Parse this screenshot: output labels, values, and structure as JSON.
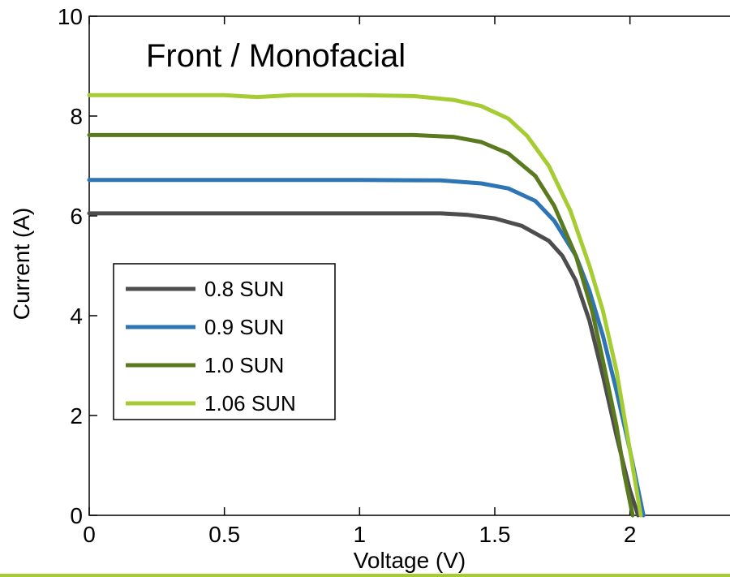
{
  "chart_data": {
    "type": "line",
    "title": "Front / Monofacial",
    "xlabel": "Voltage (V)",
    "ylabel": "Current (A)",
    "xlim": [
      0,
      2.4
    ],
    "ylim": [
      0,
      10
    ],
    "xticks": [
      0,
      0.5,
      1,
      1.5,
      2
    ],
    "xtick_labels": [
      "0",
      "0.5",
      "1",
      "1.5",
      "2"
    ],
    "yticks": [
      0,
      2,
      4,
      6,
      8,
      10
    ],
    "ytick_labels": [
      "0",
      "2",
      "4",
      "6",
      "8",
      "10"
    ],
    "grid": false,
    "legend_position": "middle-left",
    "series": [
      {
        "name": "0.8 SUN",
        "color": "#4d4d4d",
        "x": [
          0,
          0.5,
          1.0,
          1.3,
          1.4,
          1.5,
          1.6,
          1.7,
          1.75,
          1.8,
          1.85,
          1.9,
          1.95,
          2.0,
          2.03
        ],
        "y": [
          6.05,
          6.05,
          6.05,
          6.05,
          6.02,
          5.95,
          5.8,
          5.5,
          5.2,
          4.7,
          3.9,
          2.8,
          1.6,
          0.5,
          0
        ]
      },
      {
        "name": "0.9 SUN",
        "color": "#2e75b6",
        "x": [
          0,
          0.5,
          1.0,
          1.3,
          1.45,
          1.55,
          1.65,
          1.72,
          1.8,
          1.85,
          1.9,
          1.95,
          2.0,
          2.05
        ],
        "y": [
          6.72,
          6.72,
          6.72,
          6.71,
          6.65,
          6.55,
          6.3,
          5.9,
          5.2,
          4.5,
          3.6,
          2.5,
          1.3,
          0
        ]
      },
      {
        "name": "1.0 SUN",
        "color": "#5b7a1f",
        "x": [
          0,
          0.5,
          1.0,
          1.2,
          1.35,
          1.45,
          1.55,
          1.65,
          1.72,
          1.8,
          1.86,
          1.9,
          1.95,
          1.98,
          2.01
        ],
        "y": [
          7.62,
          7.62,
          7.62,
          7.62,
          7.58,
          7.48,
          7.25,
          6.8,
          6.2,
          5.2,
          4.1,
          3.1,
          1.8,
          0.8,
          0
        ]
      },
      {
        "name": "1.06 SUN",
        "color": "#a6cc33",
        "x": [
          0,
          0.5,
          0.62,
          0.75,
          1.0,
          1.2,
          1.35,
          1.45,
          1.55,
          1.62,
          1.7,
          1.78,
          1.85,
          1.9,
          1.95,
          2.0,
          2.04
        ],
        "y": [
          8.42,
          8.42,
          8.38,
          8.42,
          8.42,
          8.4,
          8.32,
          8.2,
          7.95,
          7.6,
          7.0,
          6.1,
          5.0,
          4.1,
          2.9,
          1.3,
          0
        ]
      }
    ]
  }
}
